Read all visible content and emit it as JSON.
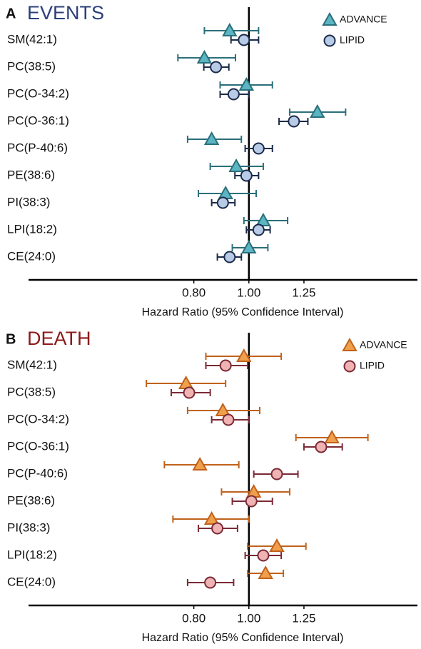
{
  "chart_data": [
    {
      "type": "forest",
      "panel_label": "A",
      "title": "EVENTS",
      "title_color": "#2b3f7a",
      "xlabel": "Hazard Ratio (95% Confidence Interval)",
      "log_x": true,
      "xlim": [
        0.48,
        1.98
      ],
      "xticks": [
        {
          "value": 0.8,
          "label": "0.80"
        },
        {
          "value": 1.0,
          "label": "1.00"
        },
        {
          "value": 1.25,
          "label": "1.25"
        }
      ],
      "reference_line": 1,
      "categories": [
        "SM(42:1)",
        "PC(38:5)",
        "PC(O-34:2)",
        "PC(O-36:1)",
        "PC(P-40:6)",
        "PE(38:6)",
        "PI(38:3)",
        "LPI(18:2)",
        "CE(24:0)"
      ],
      "series": [
        {
          "name": "ADVANCE",
          "marker": "triangle",
          "color": "#5bb5c3",
          "edge_color": "#2a6f7a",
          "values": [
            0.925,
            0.835,
            0.99,
            1.32,
            0.86,
            0.95,
            0.91,
            1.06,
            1.0
          ],
          "ci_low": [
            0.835,
            0.75,
            0.89,
            1.18,
            0.78,
            0.855,
            0.815,
            0.98,
            0.935
          ],
          "ci_high": [
            1.04,
            0.947,
            1.1,
            1.48,
            0.97,
            1.06,
            1.03,
            1.17,
            1.08
          ]
        },
        {
          "name": "LIPID",
          "marker": "circle",
          "color": "#b8cbe6",
          "edge_color": "#1c2b4a",
          "values": [
            0.98,
            0.875,
            0.94,
            1.2,
            1.04,
            0.99,
            0.9,
            1.04,
            0.925
          ],
          "ci_low": [
            0.93,
            0.833,
            0.89,
            1.13,
            0.985,
            0.945,
            0.86,
            0.99,
            0.88
          ],
          "ci_high": [
            1.04,
            0.922,
            1.0,
            1.27,
            1.1,
            1.04,
            0.945,
            1.09,
            0.97
          ]
        }
      ]
    },
    {
      "type": "forest",
      "panel_label": "B",
      "title": "DEATH",
      "title_color": "#8b1a1a",
      "xlabel": "Hazard Ratio (95% Confidence Interval)",
      "log_x": true,
      "xlim": [
        0.48,
        1.98
      ],
      "xticks": [
        {
          "value": 0.8,
          "label": "0.80"
        },
        {
          "value": 1.0,
          "label": "1.00"
        },
        {
          "value": 1.25,
          "label": "1.25"
        }
      ],
      "reference_line": 1,
      "categories": [
        "SM(42:1)",
        "PC(38:5)",
        "PC(O-34:2)",
        "PC(O-36:1)",
        "PC(P-40:6)",
        "PE(38:6)",
        "PI(38:3)",
        "LPI(18:2)",
        "CE(24:0)"
      ],
      "series": [
        {
          "name": "ADVANCE",
          "marker": "triangle",
          "color": "#f0a04b",
          "edge_color": "#c0621b",
          "values": [
            0.98,
            0.775,
            0.9,
            1.4,
            0.82,
            1.02,
            0.86,
            1.12,
            1.07
          ],
          "ci_low": [
            0.84,
            0.66,
            0.78,
            1.21,
            0.71,
            0.895,
            0.735,
            0.995,
            0.995
          ],
          "ci_high": [
            1.14,
            0.91,
            1.045,
            1.62,
            0.96,
            1.18,
            1.0,
            1.26,
            1.15
          ]
        },
        {
          "name": "LIPID",
          "marker": "circle",
          "color": "#efb3b3",
          "edge_color": "#7a2a36",
          "values": [
            0.91,
            0.785,
            0.92,
            1.34,
            1.12,
            1.01,
            0.88,
            1.06,
            0.855
          ],
          "ci_low": [
            0.84,
            0.73,
            0.86,
            1.25,
            1.02,
            0.935,
            0.815,
            0.985,
            0.78
          ],
          "ci_high": [
            0.995,
            0.855,
            1.0,
            1.46,
            1.22,
            1.1,
            0.955,
            1.14,
            0.94
          ]
        }
      ]
    }
  ]
}
